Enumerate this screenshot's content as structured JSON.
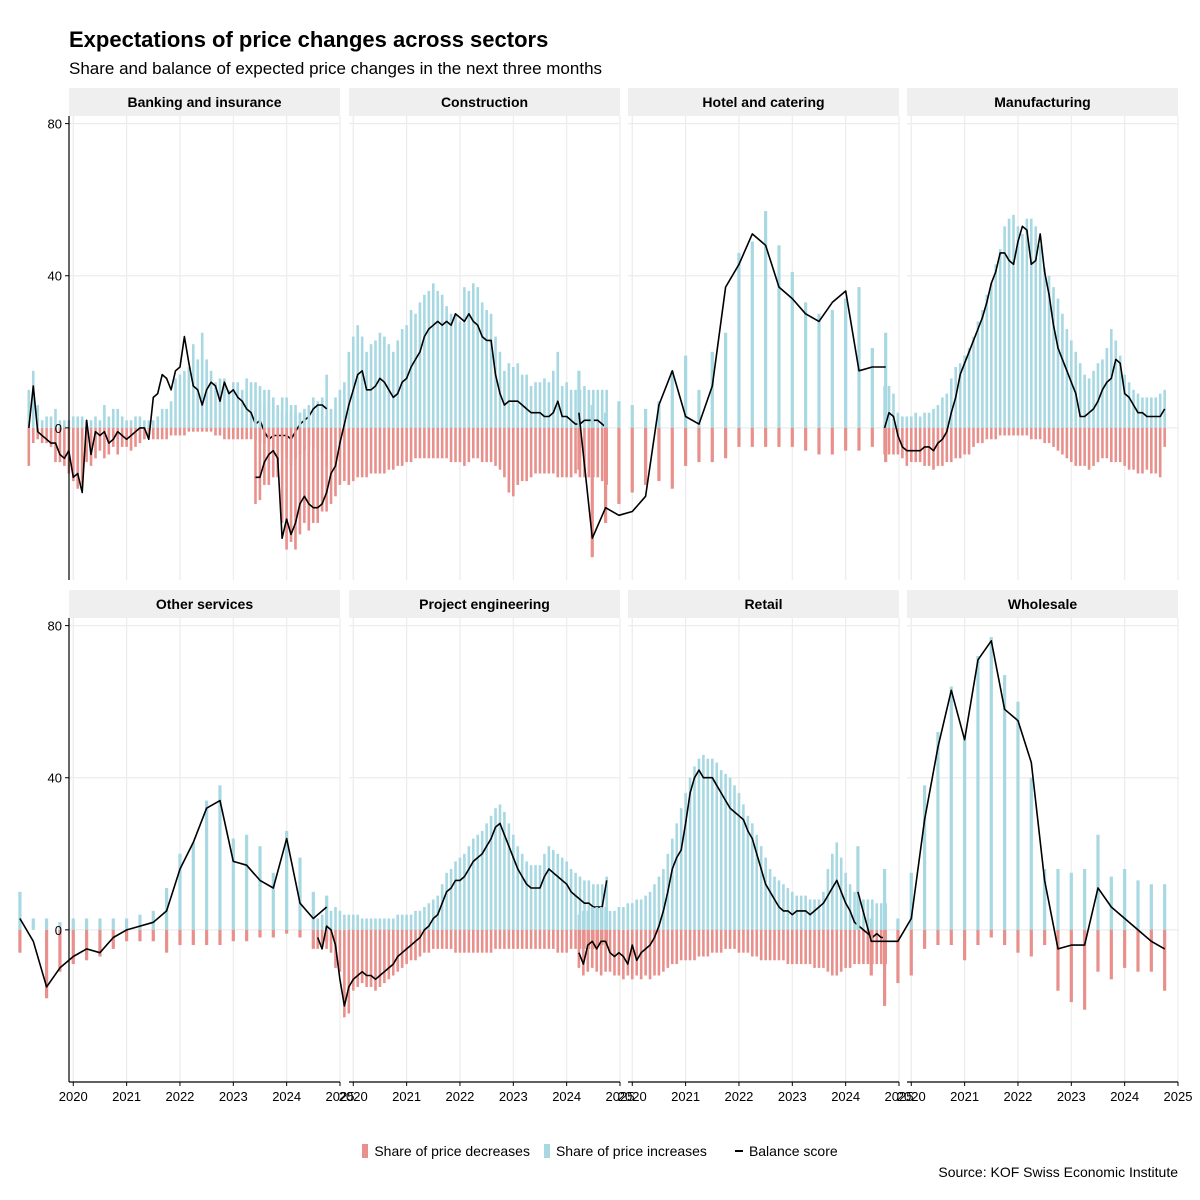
{
  "title": "Expectations of price changes across sectors",
  "subtitle": "Share and balance of expected price changes in the next three months",
  "caption": "Source: KOF Swiss Economic Institute",
  "legend": {
    "decreases": "Share of price decreases",
    "increases": "Share of price increases",
    "balance": "Balance score"
  },
  "colors": {
    "decreases": "#e8908c",
    "increases": "#a8d8e2",
    "balance": "#000000",
    "panel_strip": "#efefef",
    "grid": "#ececec"
  },
  "chart_data": {
    "type": "bar",
    "layout": "facets 2 rows x 4 columns, shared axes",
    "x_ticks": [
      "2020",
      "2021",
      "2022",
      "2023",
      "2024",
      "2025"
    ],
    "x_range": [
      2019.92,
      2025.0
    ],
    "y_ticks": [
      0,
      40,
      80
    ],
    "y_range": [
      -40,
      82
    ],
    "grid": true,
    "legend_position": "bottom",
    "panels": [
      {
        "name": "Banking and insurance",
        "freq": "monthly",
        "increases": [
          10,
          15,
          6,
          2,
          3,
          3,
          5,
          2,
          2,
          2,
          3,
          3,
          3,
          2,
          2,
          3,
          2,
          6,
          3,
          5,
          5,
          3,
          2,
          2,
          3,
          3,
          2,
          2,
          2,
          3,
          5,
          5,
          7,
          13,
          14,
          15,
          16,
          22,
          18,
          25,
          18,
          15,
          12,
          13,
          13,
          10,
          12,
          12,
          10,
          13,
          12,
          12,
          11,
          10,
          10,
          8,
          6,
          8,
          8,
          6,
          6,
          4,
          5,
          6,
          8,
          7,
          8,
          14
        ],
        "decreases": [
          10,
          4,
          3,
          4,
          4,
          5,
          9,
          9,
          10,
          12,
          14,
          16,
          15,
          9,
          10,
          8,
          6,
          8,
          7,
          5,
          7,
          5,
          5,
          6,
          5,
          4,
          3,
          2,
          3,
          3,
          3,
          3,
          2,
          2,
          2,
          2,
          1,
          1,
          1,
          1,
          1,
          1,
          2,
          2,
          3,
          3,
          3,
          3,
          3,
          3,
          3,
          3,
          4,
          4,
          5,
          5,
          6,
          7,
          8,
          10,
          8,
          7,
          6,
          5,
          5,
          6,
          7,
          10
        ],
        "balance": [
          0,
          11,
          -1,
          -2,
          -3,
          -4,
          -4,
          -7,
          -8,
          -6,
          -13,
          -12,
          -17,
          2,
          -7,
          -1,
          -2,
          -1,
          -4,
          -3,
          -1,
          -2,
          -3,
          -2,
          -1,
          0,
          0,
          -3,
          8,
          9,
          14,
          13,
          10,
          15,
          16,
          24,
          17,
          11,
          10,
          6,
          10,
          12,
          11,
          7,
          12,
          9,
          10,
          8,
          7,
          5,
          4,
          1,
          2,
          -1,
          -3,
          -2,
          -2,
          -2,
          -2,
          -3,
          -1,
          1,
          2,
          3,
          5,
          6,
          6,
          5
        ]
      },
      {
        "name": "Construction",
        "freq": "monthly",
        "increases": [
          5,
          7,
          6,
          7,
          6,
          5,
          4,
          4,
          4,
          4,
          4,
          4,
          4,
          4,
          4,
          3,
          3,
          5,
          8,
          10,
          12,
          20,
          24,
          27,
          24,
          20,
          22,
          23,
          25,
          24,
          22,
          20,
          23,
          26,
          27,
          31,
          30,
          33,
          35,
          36,
          38,
          36,
          35,
          32,
          30,
          30,
          28,
          37,
          36,
          38,
          37,
          33,
          31,
          30,
          24,
          20,
          15,
          17,
          16,
          17,
          14,
          14,
          11,
          12,
          12,
          13,
          12,
          15,
          20,
          11,
          12,
          10,
          10,
          10,
          11,
          10,
          10,
          10,
          10,
          10
        ],
        "decreases": [
          20,
          19,
          15,
          15,
          13,
          13,
          25,
          32,
          30,
          32,
          28,
          25,
          27,
          25,
          25,
          22,
          22,
          20,
          18,
          15,
          14,
          15,
          14,
          13,
          13,
          13,
          12,
          12,
          12,
          12,
          11,
          11,
          10,
          10,
          9,
          9,
          8,
          8,
          8,
          8,
          8,
          8,
          8,
          8,
          9,
          9,
          9,
          10,
          9,
          8,
          8,
          9,
          9,
          9,
          10,
          11,
          13,
          17,
          18,
          15,
          14,
          14,
          13,
          12,
          12,
          12,
          12,
          12,
          13,
          13,
          13,
          13,
          12,
          13,
          13,
          13,
          13,
          13,
          14,
          15
        ],
        "balance": [
          -13,
          -13,
          -9,
          -7,
          -6,
          -8,
          -29,
          -24,
          -28,
          -25,
          -20,
          -18,
          -20,
          -21,
          -21,
          -20,
          -17,
          -12,
          -10,
          -4,
          1,
          6,
          10,
          14,
          15,
          10,
          10,
          11,
          13,
          12,
          10,
          8,
          9,
          12,
          13,
          16,
          18,
          20,
          24,
          26,
          27,
          28,
          27,
          28,
          27,
          30,
          29,
          28,
          30,
          28,
          27,
          24,
          23,
          23,
          14,
          9,
          6,
          7,
          7,
          7,
          6,
          5,
          4,
          4,
          4,
          3,
          3,
          4,
          7,
          3,
          3,
          2,
          1,
          1,
          2,
          2,
          2,
          2,
          1,
          0
        ]
      },
      {
        "name": "Hotel and catering",
        "freq": "quarterly",
        "increases": [
          15,
          6,
          4,
          7,
          6,
          5,
          7,
          15,
          19,
          10,
          20,
          25,
          46,
          49,
          57,
          48,
          41,
          33,
          30,
          31,
          34,
          37,
          21,
          25
        ],
        "decreases": [
          11,
          34,
          25,
          20,
          17,
          15,
          14,
          16,
          10,
          9,
          9,
          8,
          5,
          5,
          5,
          5,
          5,
          6,
          7,
          7,
          6,
          6,
          5,
          9
        ],
        "balance": [
          4,
          -29,
          -21,
          -23,
          -22,
          -18,
          6,
          15,
          3,
          1,
          11,
          37,
          43,
          51,
          48,
          37,
          34,
          30,
          28,
          33,
          36,
          15,
          16,
          16
        ]
      },
      {
        "name": "Manufacturing",
        "freq": "monthly",
        "increases": [
          11,
          11,
          9,
          4,
          3,
          3,
          3,
          4,
          3,
          4,
          4,
          5,
          6,
          8,
          9,
          13,
          16,
          17,
          19,
          21,
          24,
          28,
          31,
          35,
          38,
          43,
          47,
          53,
          55,
          56,
          53,
          51,
          55,
          55,
          53,
          48,
          42,
          40,
          37,
          34,
          30,
          26,
          23,
          20,
          17,
          14,
          13,
          15,
          17,
          18,
          21,
          26,
          23,
          19,
          14,
          12,
          10,
          9,
          8,
          8,
          8,
          8,
          9,
          10
        ],
        "decreases": [
          7,
          7,
          7,
          7,
          8,
          10,
          9,
          9,
          9,
          10,
          10,
          11,
          10,
          10,
          9,
          9,
          8,
          8,
          7,
          7,
          5,
          4,
          4,
          3,
          3,
          3,
          2,
          2,
          2,
          2,
          2,
          2,
          2,
          3,
          3,
          3,
          4,
          4,
          5,
          6,
          7,
          8,
          9,
          10,
          10,
          10,
          11,
          10,
          9,
          8,
          8,
          9,
          9,
          9,
          10,
          11,
          11,
          12,
          12,
          11,
          12,
          12,
          13,
          5
        ],
        "balance": [
          0,
          4,
          3,
          -2,
          -5,
          -6,
          -6,
          -6,
          -6,
          -5,
          -5,
          -6,
          -4,
          -3,
          -1,
          4,
          8,
          14,
          17,
          20,
          23,
          26,
          29,
          33,
          38,
          41,
          46,
          46,
          44,
          43,
          49,
          53,
          52,
          43,
          44,
          51,
          41,
          35,
          27,
          21,
          18,
          15,
          12,
          9,
          3,
          3,
          4,
          5,
          7,
          10,
          12,
          13,
          18,
          17,
          9,
          8,
          6,
          4,
          4,
          3,
          3,
          3,
          3,
          5
        ]
      },
      {
        "name": "Other services",
        "freq": "quarterly",
        "increases": [
          10,
          3,
          3,
          2,
          3,
          3,
          3,
          3,
          3,
          4,
          5,
          11,
          20,
          23,
          34,
          38,
          24,
          25,
          22,
          15,
          26,
          19,
          10,
          9
        ],
        "decreases": [
          6,
          0,
          18,
          11,
          9,
          8,
          7,
          5,
          3,
          3,
          3,
          6,
          4,
          4,
          4,
          4,
          3,
          3,
          2,
          2,
          1,
          2,
          5,
          3
        ],
        "balance": [
          3,
          -3,
          -15,
          -10,
          -7,
          -5,
          -6,
          -2,
          0,
          1,
          2,
          5,
          16,
          23,
          32,
          34,
          18,
          17,
          13,
          11,
          24,
          7,
          3,
          6
        ]
      },
      {
        "name": "Project engineering",
        "freq": "monthly",
        "increases": [
          3,
          4,
          5,
          5,
          6,
          5,
          4,
          4,
          4,
          4,
          3,
          3,
          3,
          3,
          3,
          3,
          3,
          3,
          4,
          4,
          4,
          4,
          5,
          5,
          6,
          7,
          8,
          9,
          12,
          15,
          16,
          18,
          19,
          20,
          22,
          24,
          25,
          26,
          28,
          30,
          32,
          33,
          31,
          28,
          25,
          22,
          20,
          18,
          17,
          17,
          17,
          20,
          22,
          21,
          20,
          19,
          18,
          16,
          15,
          14,
          13,
          13,
          12,
          12,
          12,
          14
        ],
        "decreases": [
          5,
          4,
          5,
          6,
          10,
          11,
          23,
          22,
          16,
          15,
          14,
          15,
          15,
          16,
          15,
          14,
          13,
          12,
          11,
          10,
          9,
          8,
          8,
          7,
          6,
          6,
          5,
          5,
          5,
          5,
          5,
          6,
          6,
          6,
          6,
          6,
          6,
          6,
          6,
          6,
          5,
          5,
          5,
          5,
          5,
          5,
          5,
          5,
          5,
          5,
          5,
          5,
          5,
          5,
          6,
          6,
          6,
          5,
          5,
          5,
          5,
          5,
          5,
          4,
          4,
          4
        ],
        "balance": [
          -2,
          -5,
          1,
          0,
          -4,
          -13,
          -20,
          -15,
          -13,
          -12,
          -11,
          -12,
          -12,
          -13,
          -12,
          -11,
          -10,
          -9,
          -7,
          -6,
          -5,
          -4,
          -3,
          -2,
          0,
          1,
          3,
          4,
          7,
          10,
          11,
          13,
          13,
          14,
          16,
          18,
          19,
          20,
          22,
          24,
          27,
          28,
          25,
          22,
          19,
          16,
          14,
          12,
          11,
          11,
          11,
          14,
          16,
          15,
          14,
          13,
          12,
          10,
          9,
          8,
          7,
          7,
          6,
          6,
          6,
          13
        ]
      },
      {
        "name": "Retail",
        "freq": "monthly",
        "increases": [
          4,
          5,
          5,
          6,
          6,
          6,
          6,
          5,
          5,
          6,
          6,
          7,
          7,
          8,
          8,
          9,
          10,
          12,
          14,
          16,
          20,
          24,
          28,
          32,
          36,
          40,
          43,
          45,
          46,
          45,
          45,
          44,
          42,
          41,
          40,
          38,
          36,
          33,
          30,
          28,
          25,
          22,
          19,
          16,
          14,
          13,
          12,
          11,
          10,
          9,
          9,
          9,
          8,
          8,
          8,
          10,
          16,
          20,
          23,
          19,
          15,
          12,
          10,
          9,
          8,
          8,
          8,
          7,
          7,
          7
        ],
        "decreases": [
          10,
          12,
          11,
          10,
          11,
          12,
          11,
          11,
          12,
          12,
          13,
          12,
          13,
          12,
          13,
          12,
          13,
          12,
          12,
          11,
          10,
          9,
          9,
          8,
          8,
          8,
          8,
          7,
          7,
          7,
          6,
          6,
          6,
          5,
          5,
          5,
          6,
          6,
          6,
          7,
          7,
          8,
          8,
          8,
          8,
          8,
          8,
          9,
          9,
          9,
          9,
          9,
          9,
          10,
          10,
          10,
          11,
          12,
          12,
          11,
          10,
          10,
          9,
          9,
          9,
          9,
          9,
          9,
          9,
          9
        ],
        "balance": [
          -6,
          -9,
          -4,
          -3,
          -5,
          -3,
          -3,
          -6,
          -7,
          -6,
          -7,
          -9,
          -4,
          -8,
          -6,
          -5,
          -4,
          -2,
          1,
          5,
          10,
          16,
          19,
          21,
          28,
          36,
          40,
          42,
          40,
          40,
          40,
          38,
          36,
          34,
          32,
          31,
          30,
          29,
          26,
          24,
          20,
          16,
          12,
          10,
          8,
          6,
          5,
          5,
          4,
          5,
          5,
          5,
          4,
          5,
          6,
          7,
          9,
          11,
          13,
          10,
          7,
          5,
          2,
          1,
          0,
          -1,
          -2,
          -1,
          -2,
          -2
        ]
      },
      {
        "name": "Wholesale",
        "freq": "quarterly",
        "increases": [
          22,
          3,
          16,
          3,
          15,
          38,
          52,
          64,
          51,
          72,
          77,
          67,
          60,
          40,
          16,
          16,
          15,
          16,
          25,
          14,
          16,
          13,
          12,
          12
        ],
        "decreases": [
          0,
          12,
          20,
          14,
          12,
          5,
          4,
          4,
          8,
          4,
          2,
          4,
          6,
          7,
          4,
          16,
          19,
          21,
          11,
          13,
          10,
          11,
          11,
          16
        ],
        "balance": [
          10,
          -3,
          -3,
          -3,
          3,
          29,
          48,
          63,
          50,
          71,
          76,
          58,
          55,
          44,
          13,
          -5,
          -4,
          -4,
          11,
          6,
          3,
          0,
          -3,
          -5
        ]
      }
    ]
  }
}
